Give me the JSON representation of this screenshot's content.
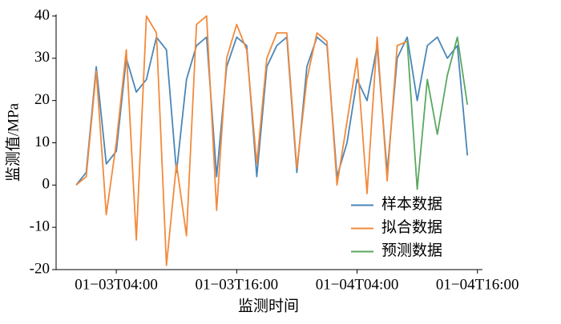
{
  "chart_data": {
    "type": "line",
    "ylabel": "监测值/MPa",
    "xlabel": "监测时间",
    "x": [
      "01-03T00:00",
      "01-03T01:00",
      "01-03T02:00",
      "01-03T03:00",
      "01-03T04:00",
      "01-03T05:00",
      "01-03T06:00",
      "01-03T07:00",
      "01-03T08:00",
      "01-03T09:00",
      "01-03T10:00",
      "01-03T11:00",
      "01-03T12:00",
      "01-03T13:00",
      "01-03T14:00",
      "01-03T15:00",
      "01-03T16:00",
      "01-03T17:00",
      "01-03T18:00",
      "01-03T19:00",
      "01-03T20:00",
      "01-03T21:00",
      "01-03T22:00",
      "01-03T23:00",
      "01-04T00:00",
      "01-04T01:00",
      "01-04T02:00",
      "01-04T03:00",
      "01-04T04:00",
      "01-04T05:00",
      "01-04T06:00",
      "01-04T07:00",
      "01-04T08:00",
      "01-04T09:00",
      "01-04T10:00",
      "01-04T11:00",
      "01-04T12:00",
      "01-04T13:00",
      "01-04T14:00",
      "01-04T15:00"
    ],
    "series": [
      {
        "name": "样本数据",
        "color": "#4a86b8",
        "values": [
          0,
          3,
          28,
          5,
          8,
          30,
          22,
          25,
          35,
          32,
          3,
          25,
          33,
          35,
          2,
          28,
          35,
          33,
          2,
          28,
          33,
          35,
          3,
          28,
          35,
          33,
          2,
          10,
          25,
          20,
          33,
          3,
          30,
          35,
          20,
          33,
          35,
          30,
          33,
          7
        ]
      },
      {
        "name": "拟合数据",
        "color": "#f28a3c",
        "values": [
          0,
          2,
          27,
          -7,
          10,
          32,
          -13,
          40,
          36,
          -19,
          5,
          -12,
          38,
          40,
          -6,
          30,
          38,
          32,
          5,
          30,
          36,
          36,
          4,
          25,
          36,
          34,
          0,
          15,
          30,
          -2,
          35,
          1,
          33,
          34,
          null,
          null,
          null,
          null,
          null,
          null
        ]
      },
      {
        "name": "预测数据",
        "color": "#5aa85f",
        "values": [
          null,
          null,
          null,
          null,
          null,
          null,
          null,
          null,
          null,
          null,
          null,
          null,
          null,
          null,
          null,
          null,
          null,
          null,
          null,
          null,
          null,
          null,
          null,
          null,
          null,
          null,
          null,
          null,
          null,
          null,
          null,
          null,
          null,
          34,
          -1,
          25,
          12,
          26,
          35,
          19
        ]
      }
    ],
    "xlim": [
      "01-02T22:00",
      "01-04T16:30"
    ],
    "xticks": [
      "01−03T04:00",
      "01−03T16:00",
      "01−04T04:00",
      "01−04T16:00"
    ],
    "ylim": [
      -20,
      40
    ],
    "yticks": [
      -20,
      -10,
      0,
      10,
      20,
      30,
      40
    ],
    "legend": "lower right"
  }
}
